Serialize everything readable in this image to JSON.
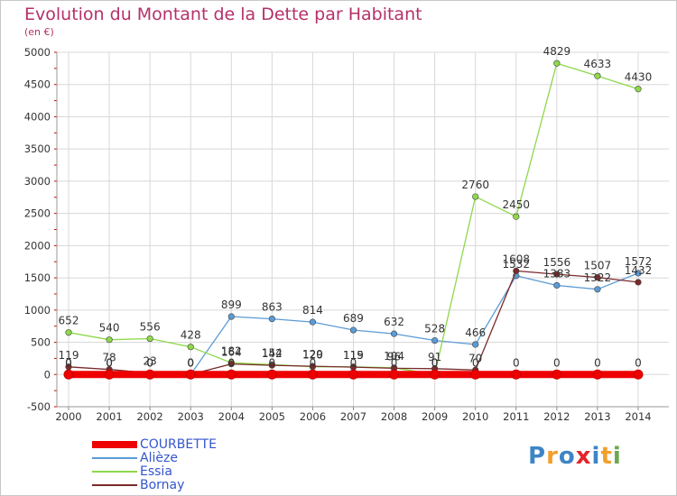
{
  "title": "Evolution du Montant de la Dette par Habitant",
  "unit": "(en €)",
  "logo": {
    "letters": [
      "P",
      "r",
      "o",
      "x",
      "i",
      "t",
      "i"
    ],
    "colors": [
      "#3d85c6",
      "#f1a02a",
      "#3d85c6",
      "#e3242b",
      "#3d85c6",
      "#f1a02a",
      "#6aa84f"
    ]
  },
  "chart_data": {
    "type": "line",
    "x": [
      "2000",
      "2001",
      "2002",
      "2003",
      "2004",
      "2005",
      "2006",
      "2007",
      "2008",
      "2009",
      "2010",
      "2011",
      "2012",
      "2013",
      "2014"
    ],
    "ylim": [
      -500,
      5000
    ],
    "yticks": [
      -500,
      0,
      500,
      1000,
      1500,
      2000,
      2500,
      3000,
      3500,
      4000,
      4500,
      5000
    ],
    "grid": true,
    "legend_position": "bottom-left",
    "series": [
      {
        "name": "COURBETTE",
        "color": "#ee0000",
        "values": [
          0,
          0,
          0,
          0,
          0,
          0,
          0,
          0,
          0,
          0,
          0,
          0,
          0,
          0,
          0
        ],
        "labels": [
          "0",
          "0",
          "0",
          "0",
          "0",
          "0",
          "0",
          "0",
          "0",
          "0",
          "0",
          "0",
          "0",
          "0",
          "0"
        ]
      },
      {
        "name": "Alièze",
        "color": "#5b9bd5",
        "values": [
          0,
          0,
          0,
          0,
          899,
          863,
          814,
          689,
          632,
          528,
          466,
          1532,
          1383,
          1322,
          1572
        ],
        "labels": [
          "0",
          "0",
          "0",
          "0",
          "899",
          "863",
          "814",
          "689",
          "632",
          "528",
          "466",
          "1532",
          "1383",
          "1322",
          "1572"
        ]
      },
      {
        "name": "Essia",
        "color": "#8ed84a",
        "values": [
          652,
          540,
          556,
          428,
          182,
          154,
          120,
          119,
          104,
          0,
          2760,
          2450,
          4829,
          4633,
          4430
        ],
        "labels": [
          "652",
          "540",
          "556",
          "428",
          "182",
          "154",
          "120",
          "119",
          "104",
          "0",
          "2760",
          "2450",
          "4829",
          "4633",
          "4430"
        ]
      },
      {
        "name": "Bornay",
        "color": "#7a2a2a",
        "values": [
          119,
          78,
          23,
          0,
          164,
          142,
          129,
          115,
          96,
          91,
          70,
          1608,
          1556,
          1507,
          1432
        ],
        "labels": [
          "119",
          "78",
          "23",
          "0",
          "164",
          "142",
          "129",
          "115",
          "96",
          "91",
          "70",
          "1608",
          "1556",
          "1507",
          "1432"
        ]
      }
    ]
  }
}
